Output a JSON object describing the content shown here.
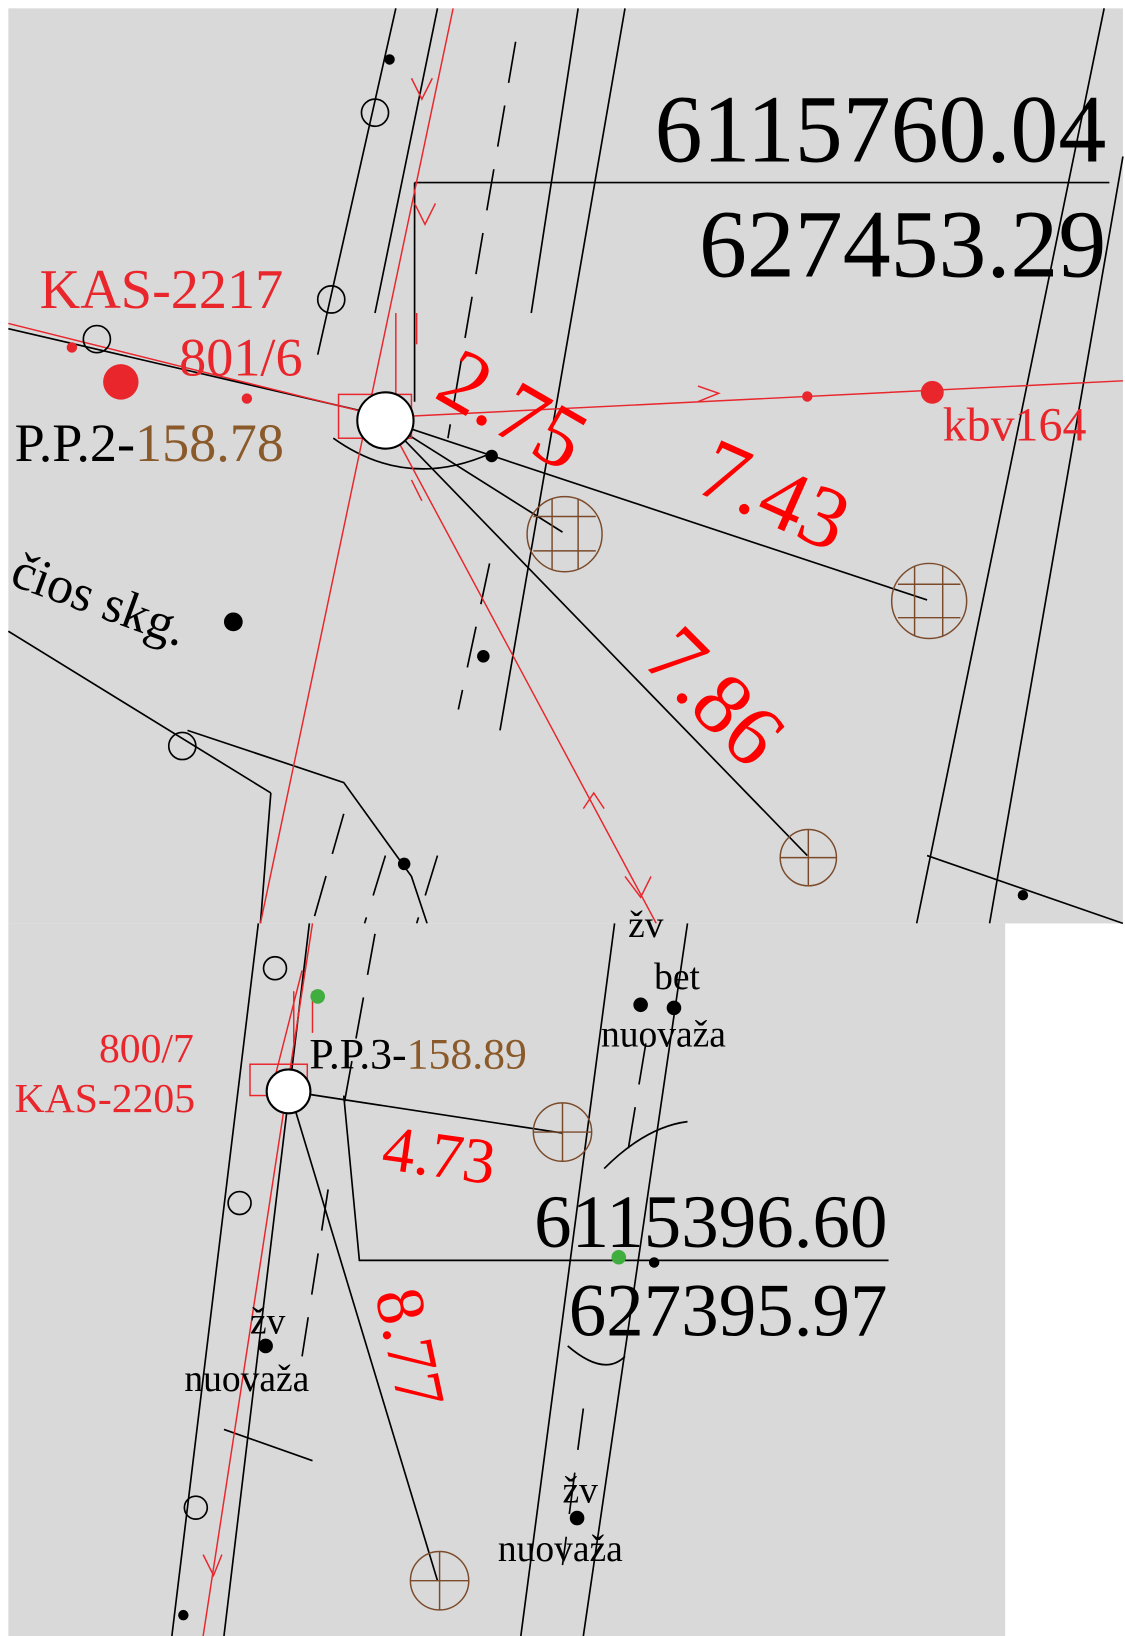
{
  "top_panel": {
    "coordinate_x": "6115760.04",
    "coordinate_y": "627453.29",
    "well_label": "KAS-2217",
    "parcel_label": "801/6",
    "point_prefix": "P.P.2-",
    "point_elevation": "158.78",
    "distances": [
      "2.75",
      "7.43",
      "7.86"
    ],
    "pipe_label": "kbv164",
    "street_label": "čios skg."
  },
  "bottom_panel": {
    "coordinate_x": "6115396.60",
    "coordinate_y": "627395.97",
    "parcel_label": "800/7",
    "well_label": "KAS-2205",
    "point_prefix": "P.P.3-",
    "point_elevation": "158.89",
    "distances": [
      "4.73",
      "8.77"
    ],
    "notes": [
      {
        "kind": "žv",
        "material": "bet",
        "surface": "nuovaža"
      },
      {
        "kind": "žv",
        "surface": "nuovaža"
      },
      {
        "kind": "žv",
        "surface": "nuovaža"
      }
    ]
  }
}
